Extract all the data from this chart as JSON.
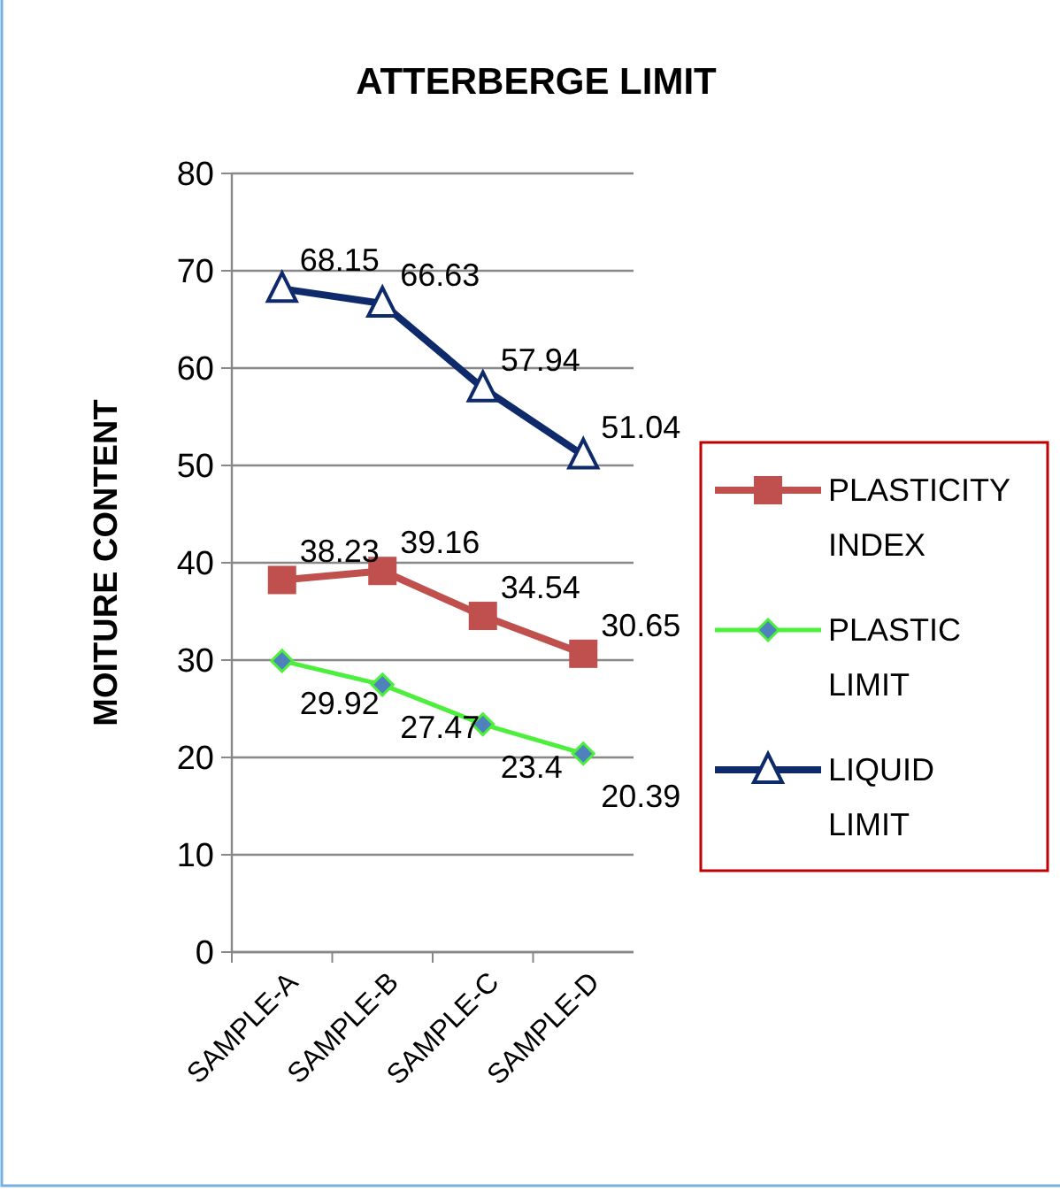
{
  "chart_data": {
    "type": "line",
    "title": "ATTERBERGE LIMIT",
    "ylabel": "MOITURE CONTENT",
    "categories": [
      "SAMPLE-A",
      "SAMPLE-B",
      "SAMPLE-C",
      "SAMPLE-D"
    ],
    "series": [
      {
        "name": "PLASTICITY INDEX",
        "color": "#c0504d",
        "marker": "square",
        "values": [
          38.23,
          39.16,
          34.54,
          30.65
        ]
      },
      {
        "name": "PLASTIC LIMIT",
        "color": "#4cf03c",
        "marker": "diamond",
        "values": [
          29.92,
          27.47,
          23.4,
          20.39
        ]
      },
      {
        "name": "LIQUID LIMIT",
        "color": "#0f2a6b",
        "marker": "triangle",
        "values": [
          68.15,
          66.63,
          57.94,
          51.04
        ]
      }
    ],
    "ylim": [
      0,
      80
    ],
    "yticks": [
      0,
      10,
      20,
      30,
      40,
      50,
      60,
      70,
      80
    ],
    "grid": "y",
    "legend": "right",
    "data_labels": true
  }
}
